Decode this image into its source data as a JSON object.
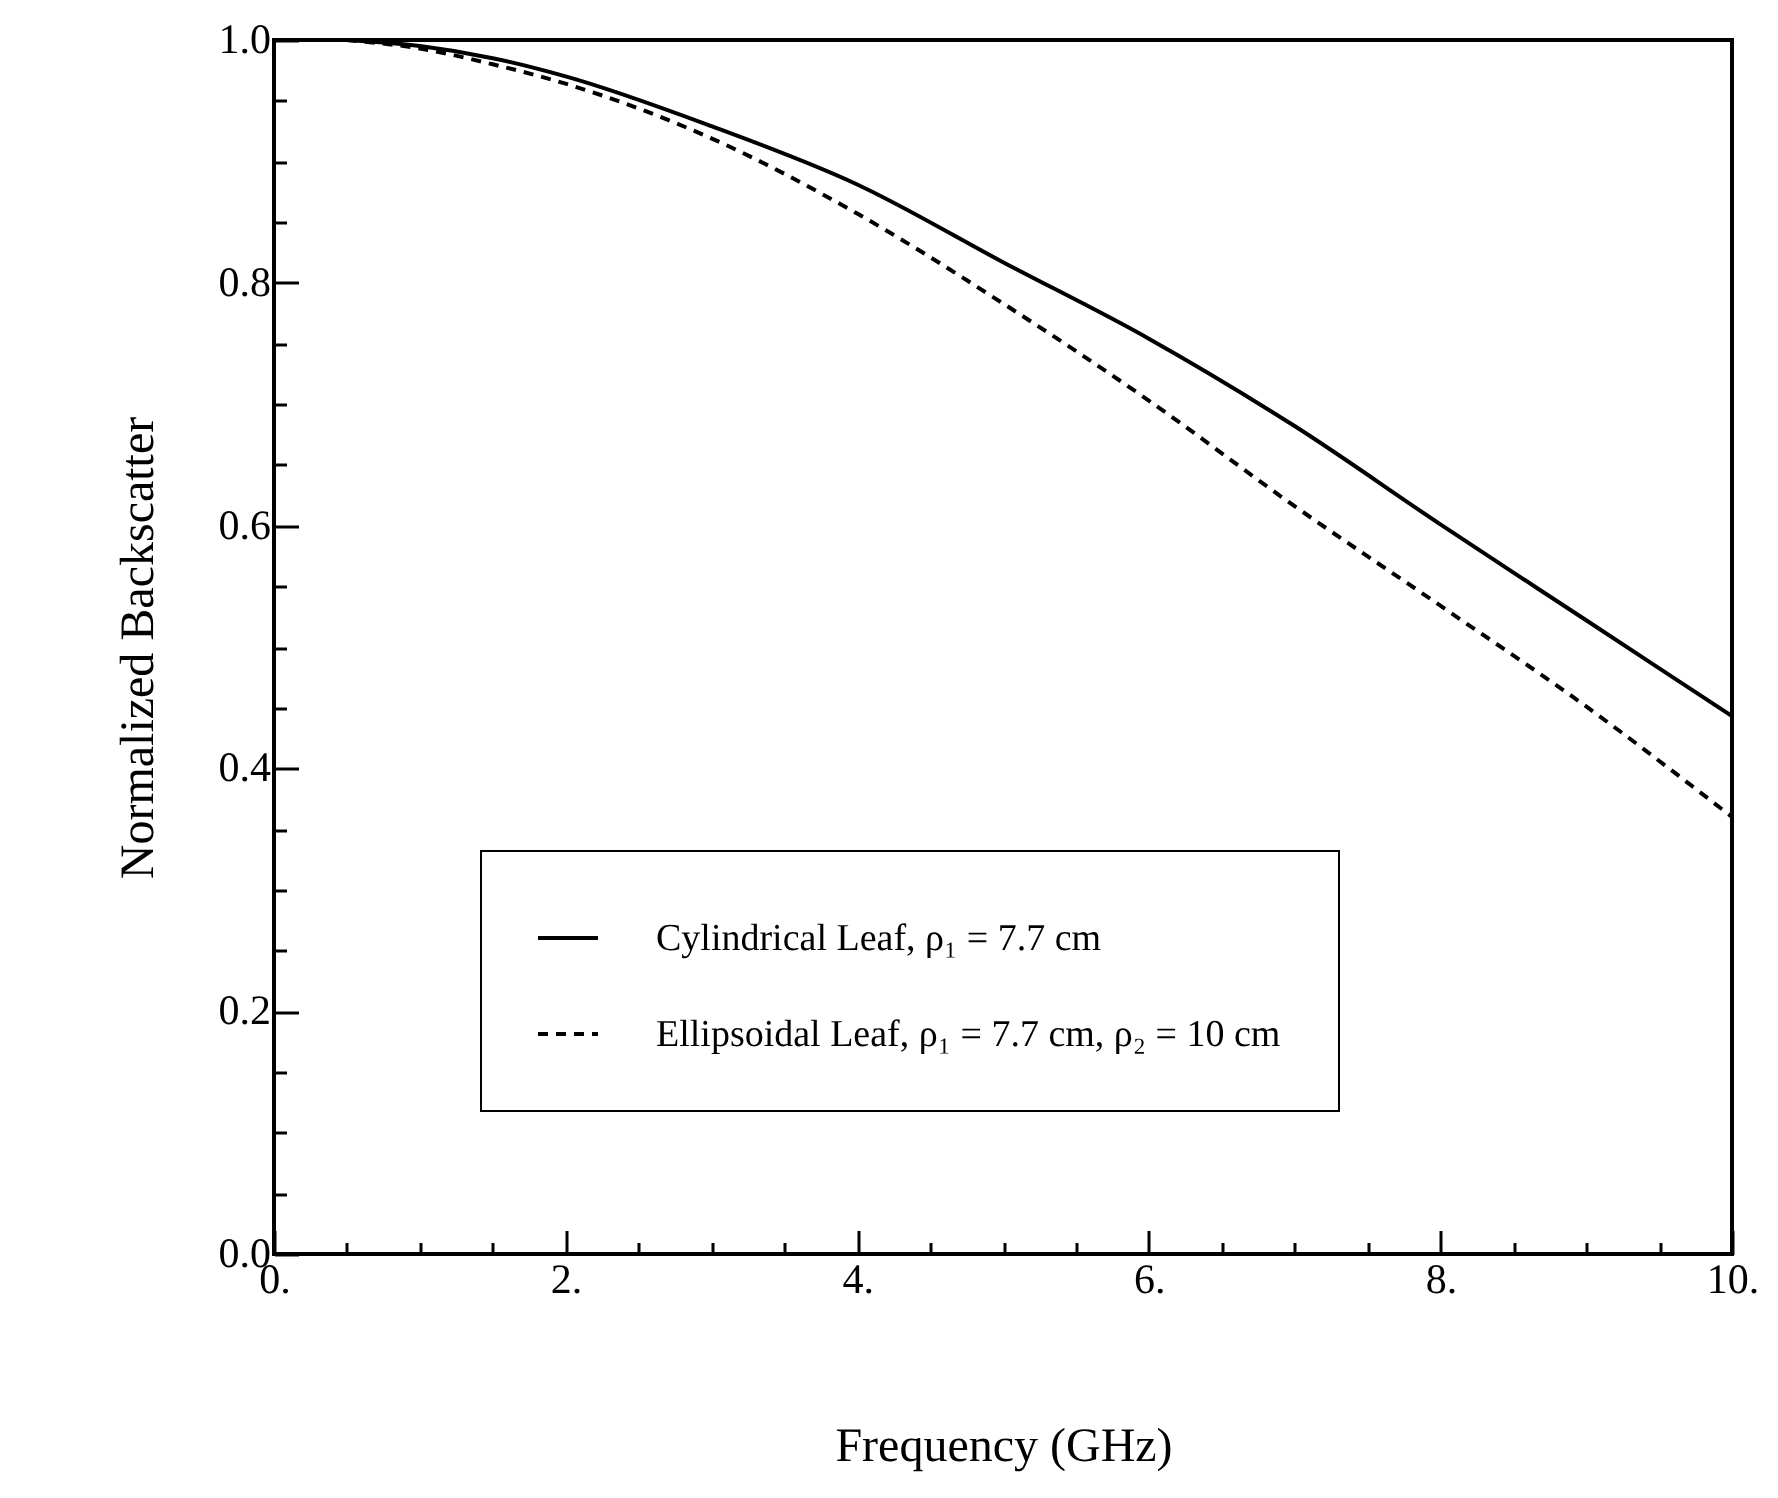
{
  "chart_data": {
    "type": "line",
    "xlabel": "Frequency (GHz)",
    "ylabel": "Normalized Backscatter",
    "x": [
      0.5,
      1,
      1.5,
      2,
      3,
      4,
      5,
      6,
      7,
      8,
      9,
      10
    ],
    "series": [
      {
        "name": "Cylindrical Leaf, ρ₁ = 7.7 cm",
        "color": "#000000",
        "line_style": "solid",
        "values": [
          1.0,
          0.995,
          0.985,
          0.97,
          0.929,
          0.881,
          0.817,
          0.754,
          0.682,
          0.601,
          0.522,
          0.443
        ]
      },
      {
        "name": "Ellipsoidal Leaf, ρ₁ = 7.7 cm, ρ₂ = 10 cm",
        "color": "#000000",
        "line_style": "dashed",
        "values": [
          1.0,
          0.993,
          0.98,
          0.964,
          0.919,
          0.857,
          0.783,
          0.703,
          0.616,
          0.534,
          0.451,
          0.36
        ]
      }
    ],
    "xlim": [
      0,
      10
    ],
    "ylim": [
      0,
      1
    ],
    "xticks": [
      {
        "value": 0,
        "label": "0."
      },
      {
        "value": 0.5,
        "label": null
      },
      {
        "value": 1,
        "label": null
      },
      {
        "value": 1.5,
        "label": null
      },
      {
        "value": 2,
        "label": "2."
      },
      {
        "value": 2.5,
        "label": null
      },
      {
        "value": 3,
        "label": null
      },
      {
        "value": 3.5,
        "label": null
      },
      {
        "value": 4,
        "label": "4."
      },
      {
        "value": 4.5,
        "label": null
      },
      {
        "value": 5,
        "label": null
      },
      {
        "value": 5.5,
        "label": null
      },
      {
        "value": 6,
        "label": "6."
      },
      {
        "value": 6.5,
        "label": null
      },
      {
        "value": 7,
        "label": null
      },
      {
        "value": 7.5,
        "label": null
      },
      {
        "value": 8,
        "label": "8."
      },
      {
        "value": 8.5,
        "label": null
      },
      {
        "value": 9,
        "label": null
      },
      {
        "value": 9.5,
        "label": null
      },
      {
        "value": 10,
        "label": "10."
      }
    ],
    "yticks": [
      {
        "value": 0,
        "label": "0.0"
      },
      {
        "value": 0.05,
        "label": null
      },
      {
        "value": 0.1,
        "label": null
      },
      {
        "value": 0.15,
        "label": null
      },
      {
        "value": 0.2,
        "label": "0.2"
      },
      {
        "value": 0.25,
        "label": null
      },
      {
        "value": 0.3,
        "label": null
      },
      {
        "value": 0.35,
        "label": null
      },
      {
        "value": 0.4,
        "label": "0.4"
      },
      {
        "value": 0.45,
        "label": null
      },
      {
        "value": 0.5,
        "label": null
      },
      {
        "value": 0.55,
        "label": null
      },
      {
        "value": 0.6,
        "label": "0.6"
      },
      {
        "value": 0.65,
        "label": null
      },
      {
        "value": 0.7,
        "label": null
      },
      {
        "value": 0.75,
        "label": null
      },
      {
        "value": 0.8,
        "label": "0.8"
      },
      {
        "value": 0.85,
        "label": null
      },
      {
        "value": 0.9,
        "label": null
      },
      {
        "value": 0.95,
        "label": null
      },
      {
        "value": 1,
        "label": "1.0"
      }
    ],
    "grid": false,
    "legend": "bottom"
  }
}
